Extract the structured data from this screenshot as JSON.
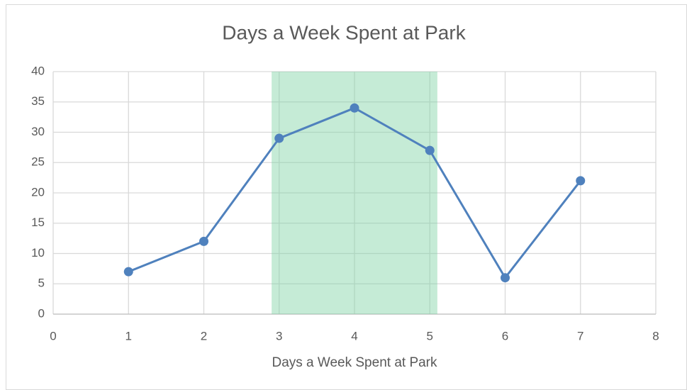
{
  "chart_data": {
    "type": "line",
    "title": "Days a Week Spent at Park",
    "x_label": "Days a Week Spent at Park",
    "x": [
      1,
      2,
      3,
      4,
      5,
      6,
      7
    ],
    "values": [
      7,
      12,
      29,
      34,
      27,
      6,
      22
    ],
    "color": "#4f81bd",
    "xlim": [
      0,
      8
    ],
    "xticks": [
      0,
      1,
      2,
      3,
      4,
      5,
      6,
      7,
      8
    ],
    "ylim": [
      0,
      40
    ],
    "yticks": [
      0,
      5,
      10,
      15,
      20,
      25,
      30,
      35,
      40
    ],
    "grid": true,
    "shaded_range": [
      2.9,
      5.1
    ],
    "shaded_color": "#7fd3a4"
  }
}
